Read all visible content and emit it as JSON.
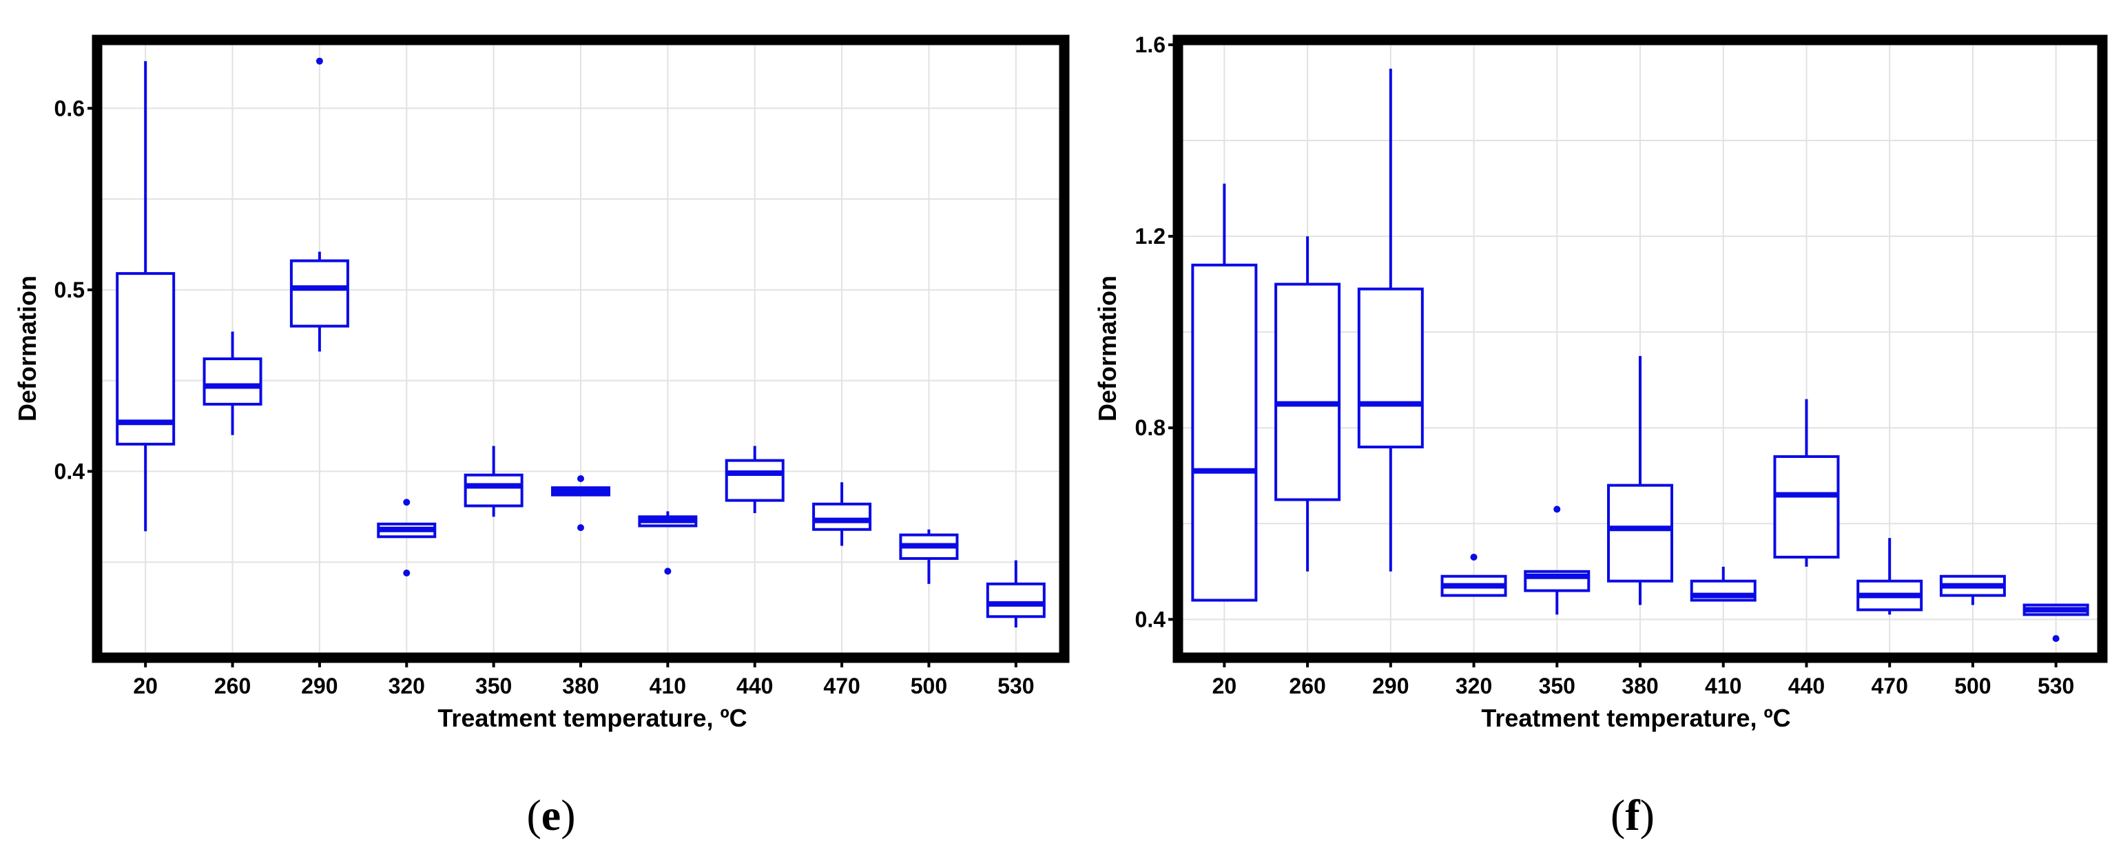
{
  "colors": {
    "box": "#0a0ae6",
    "frame": "#000000",
    "grid": "#e2e2e2"
  },
  "chart_data": [
    {
      "type": "box",
      "panel_label": "(e)",
      "panel_letter": "e",
      "xlabel": "Treatment temperature, ºC",
      "ylabel": "Deformation",
      "categories": [
        "20",
        "260",
        "290",
        "320",
        "350",
        "380",
        "410",
        "440",
        "470",
        "500",
        "530"
      ],
      "ylim": [
        0.3,
        0.635
      ],
      "yticks": [
        0.4,
        0.5,
        0.6
      ],
      "ytick_labels": [
        "0.4",
        "0.5",
        "0.6"
      ],
      "grid": true,
      "boxes": [
        {
          "min": 0.367,
          "q1": 0.415,
          "median": 0.427,
          "q3": 0.509,
          "max": 0.626,
          "outliers": []
        },
        {
          "min": 0.42,
          "q1": 0.437,
          "median": 0.447,
          "q3": 0.462,
          "max": 0.477,
          "outliers": []
        },
        {
          "min": 0.466,
          "q1": 0.48,
          "median": 0.501,
          "q3": 0.516,
          "max": 0.521,
          "outliers": [
            0.626
          ]
        },
        {
          "min": 0.364,
          "q1": 0.364,
          "median": 0.368,
          "q3": 0.371,
          "max": 0.371,
          "outliers": [
            0.383,
            0.344
          ]
        },
        {
          "min": 0.375,
          "q1": 0.381,
          "median": 0.392,
          "q3": 0.398,
          "max": 0.414,
          "outliers": []
        },
        {
          "min": 0.387,
          "q1": 0.387,
          "median": 0.389,
          "q3": 0.391,
          "max": 0.391,
          "outliers": [
            0.396,
            0.369
          ]
        },
        {
          "min": 0.37,
          "q1": 0.37,
          "median": 0.373,
          "q3": 0.375,
          "max": 0.378,
          "outliers": [
            0.345
          ]
        },
        {
          "min": 0.377,
          "q1": 0.384,
          "median": 0.399,
          "q3": 0.406,
          "max": 0.414,
          "outliers": []
        },
        {
          "min": 0.359,
          "q1": 0.368,
          "median": 0.373,
          "q3": 0.382,
          "max": 0.394,
          "outliers": []
        },
        {
          "min": 0.338,
          "q1": 0.352,
          "median": 0.359,
          "q3": 0.365,
          "max": 0.368,
          "outliers": []
        },
        {
          "min": 0.314,
          "q1": 0.32,
          "median": 0.327,
          "q3": 0.338,
          "max": 0.351,
          "outliers": []
        }
      ]
    },
    {
      "type": "box",
      "panel_label": "(f)",
      "panel_letter": "f",
      "xlabel": "Treatment temperature, ºC",
      "ylabel": "Deformation",
      "categories": [
        "20",
        "260",
        "290",
        "320",
        "350",
        "380",
        "410",
        "440",
        "470",
        "500",
        "530"
      ],
      "ylim": [
        0.33,
        1.6
      ],
      "yticks": [
        0.4,
        0.8,
        1.2,
        1.6
      ],
      "ytick_labels": [
        "0.4",
        "0.8",
        "1.2",
        "1.6"
      ],
      "grid": true,
      "boxes": [
        {
          "min": 0.44,
          "q1": 0.44,
          "median": 0.71,
          "q3": 1.14,
          "max": 1.31,
          "outliers": []
        },
        {
          "min": 0.5,
          "q1": 0.65,
          "median": 0.85,
          "q3": 1.1,
          "max": 1.2,
          "outliers": []
        },
        {
          "min": 0.5,
          "q1": 0.76,
          "median": 0.85,
          "q3": 1.09,
          "max": 1.55,
          "outliers": []
        },
        {
          "min": 0.45,
          "q1": 0.45,
          "median": 0.47,
          "q3": 0.49,
          "max": 0.49,
          "outliers": [
            0.53
          ]
        },
        {
          "min": 0.41,
          "q1": 0.46,
          "median": 0.49,
          "q3": 0.5,
          "max": 0.5,
          "outliers": [
            0.63
          ]
        },
        {
          "min": 0.43,
          "q1": 0.48,
          "median": 0.59,
          "q3": 0.68,
          "max": 0.95,
          "outliers": []
        },
        {
          "min": 0.44,
          "q1": 0.44,
          "median": 0.45,
          "q3": 0.48,
          "max": 0.51,
          "outliers": []
        },
        {
          "min": 0.51,
          "q1": 0.53,
          "median": 0.66,
          "q3": 0.74,
          "max": 0.86,
          "outliers": []
        },
        {
          "min": 0.41,
          "q1": 0.42,
          "median": 0.45,
          "q3": 0.48,
          "max": 0.57,
          "outliers": []
        },
        {
          "min": 0.43,
          "q1": 0.45,
          "median": 0.47,
          "q3": 0.49,
          "max": 0.49,
          "outliers": []
        },
        {
          "min": 0.41,
          "q1": 0.41,
          "median": 0.42,
          "q3": 0.43,
          "max": 0.43,
          "outliers": [
            0.36
          ]
        }
      ]
    }
  ]
}
